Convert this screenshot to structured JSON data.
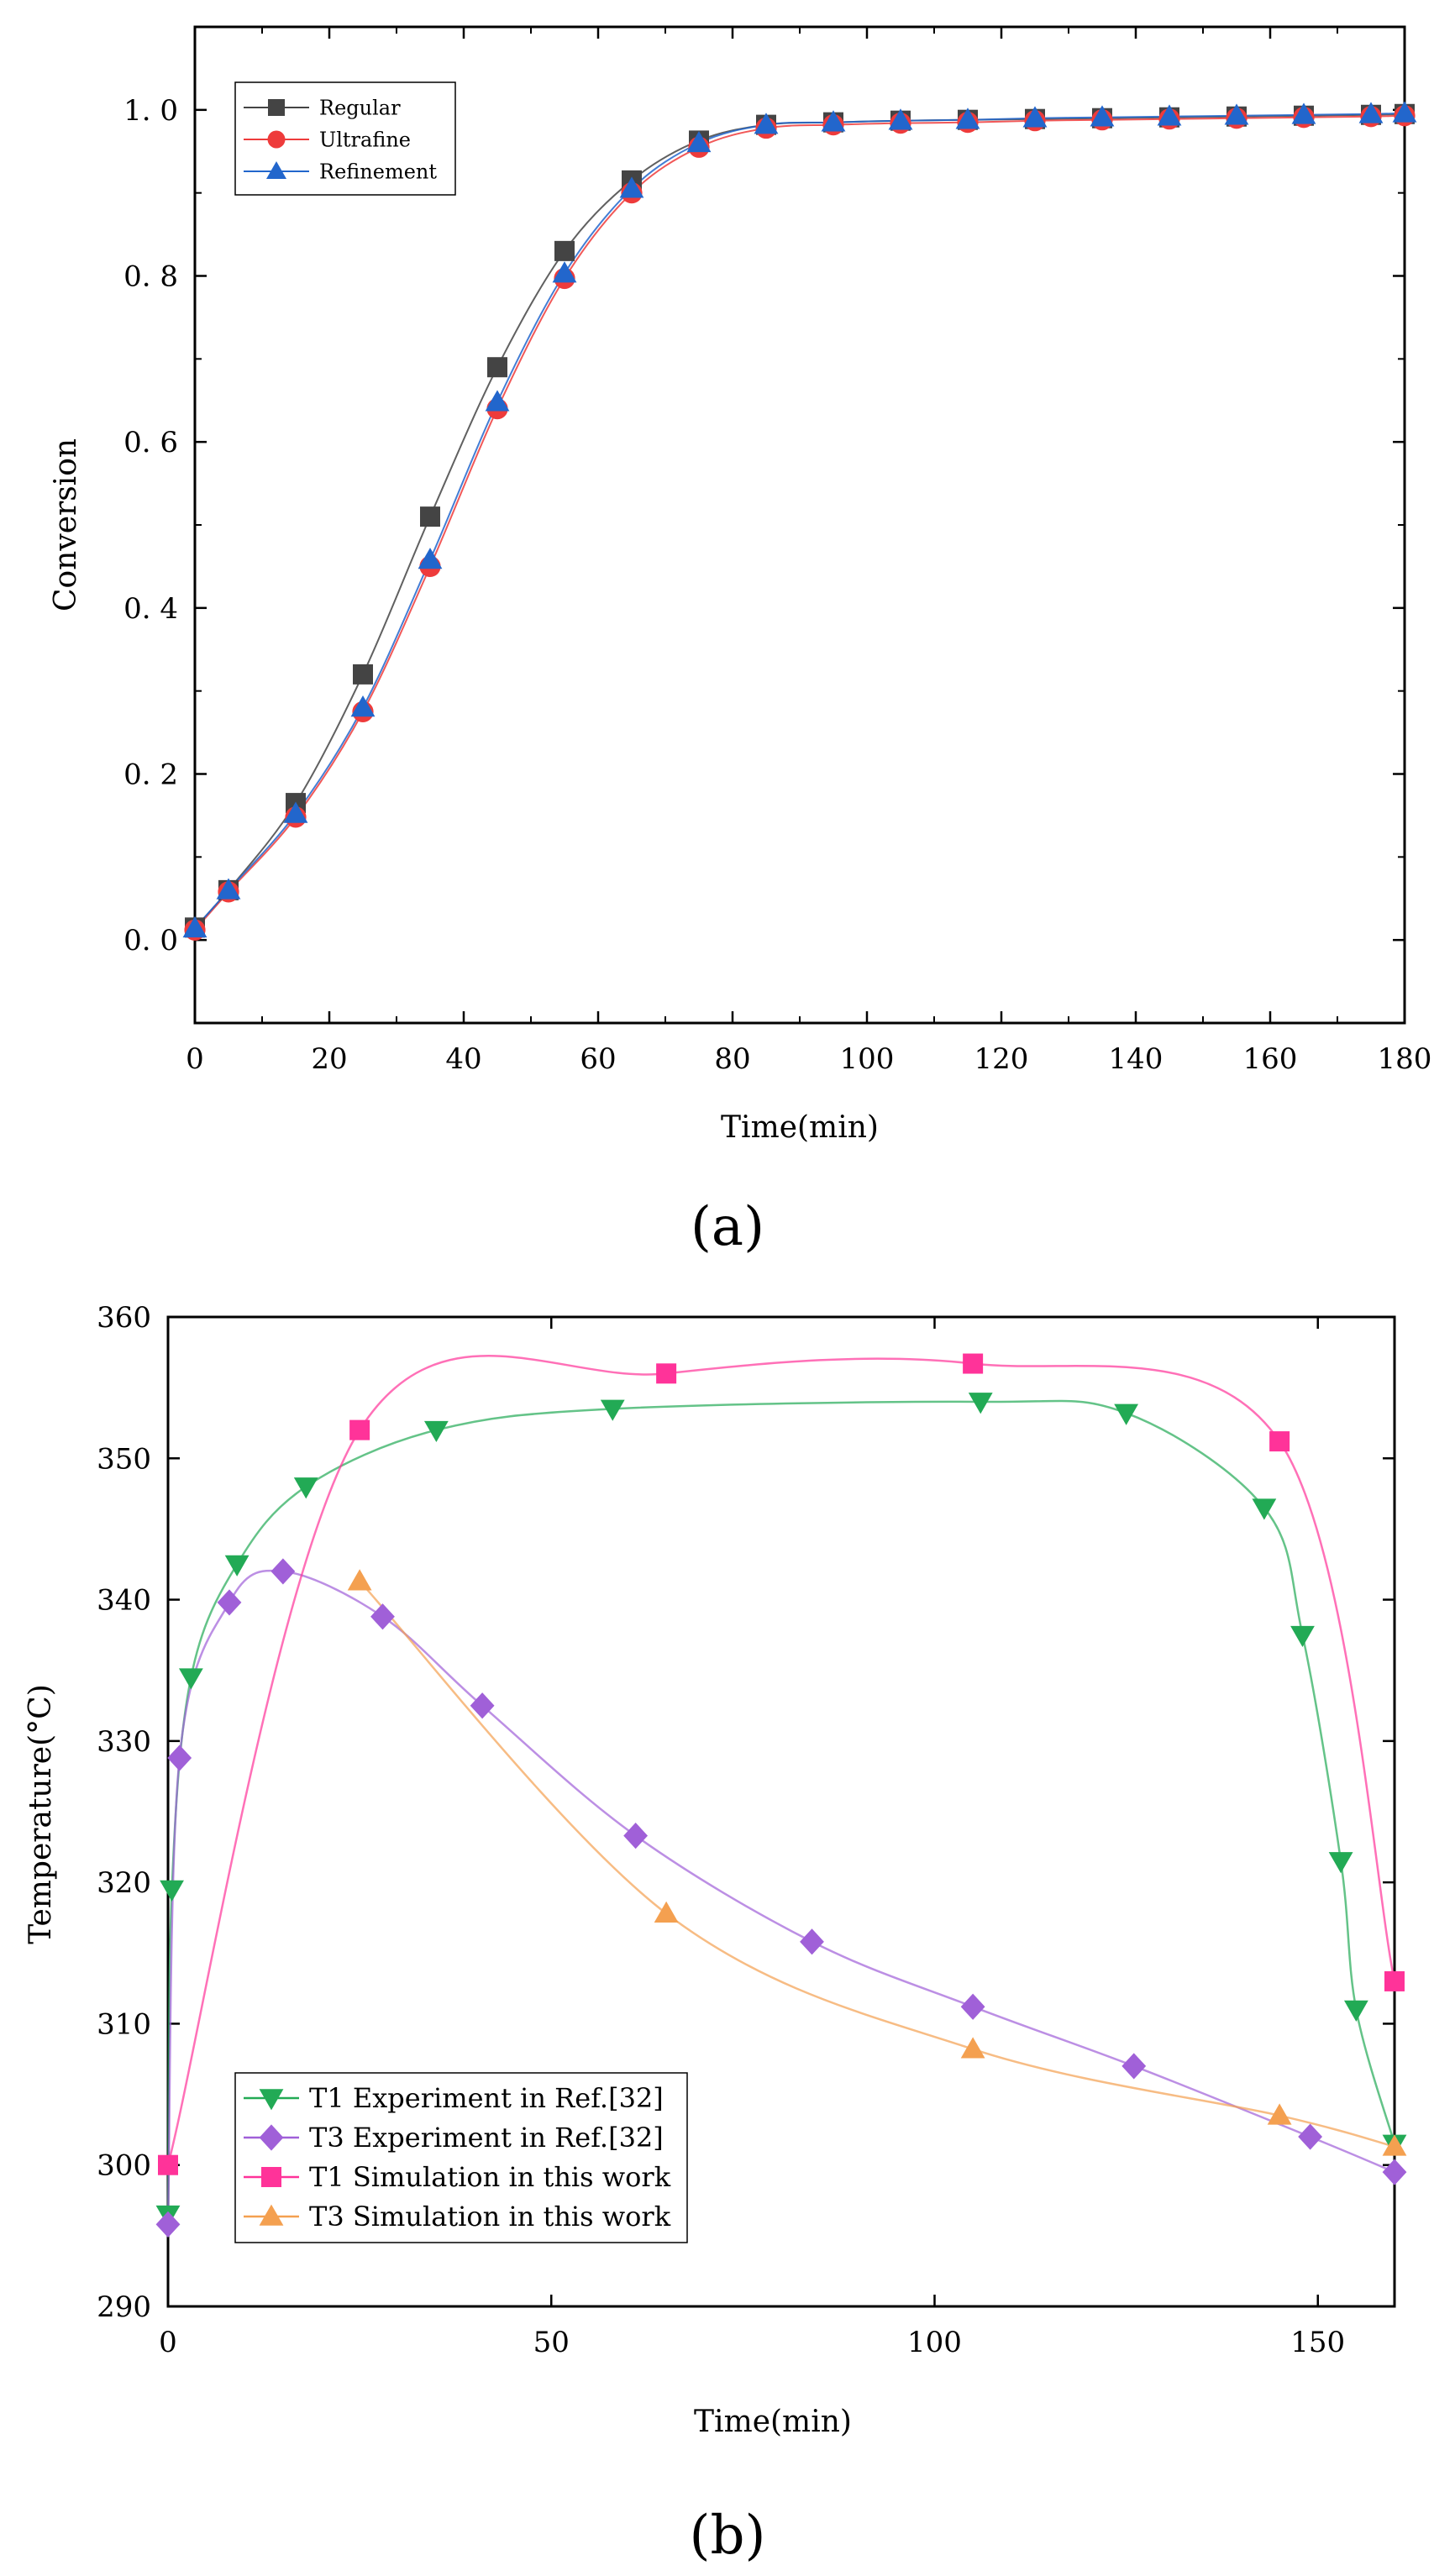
{
  "chart_data": [
    {
      "type": "line",
      "panel": "(a)",
      "xlabel": "Time(min)",
      "ylabel": "Conversion",
      "xlim": [
        0,
        180
      ],
      "ylim": [
        -0.1,
        1.1
      ],
      "xticks": [
        0,
        20,
        40,
        60,
        80,
        100,
        120,
        140,
        160,
        180
      ],
      "yticks": [
        0.0,
        0.2,
        0.4,
        0.6,
        0.8,
        1.0
      ],
      "ytick_labels": [
        "0. 0",
        "0. 2",
        "0. 4",
        "0. 6",
        "0. 8",
        "1. 0"
      ],
      "legend_position": "top-left",
      "series": [
        {
          "name": "Regular",
          "color": "#444444",
          "marker": "square",
          "x": [
            0,
            5,
            15,
            25,
            35,
            45,
            55,
            65,
            75,
            85,
            95,
            105,
            115,
            125,
            135,
            145,
            155,
            165,
            175,
            180
          ],
          "y": [
            0.015,
            0.06,
            0.165,
            0.32,
            0.51,
            0.69,
            0.83,
            0.915,
            0.963,
            0.982,
            0.985,
            0.987,
            0.988,
            0.989,
            0.99,
            0.991,
            0.992,
            0.993,
            0.994,
            0.995
          ]
        },
        {
          "name": "Ultrafine",
          "color": "#ee3b3b",
          "marker": "circle",
          "x": [
            0,
            5,
            15,
            25,
            35,
            45,
            55,
            65,
            75,
            85,
            95,
            105,
            115,
            125,
            135,
            145,
            155,
            165,
            175,
            180
          ],
          "y": [
            0.012,
            0.058,
            0.148,
            0.275,
            0.45,
            0.64,
            0.797,
            0.9,
            0.955,
            0.978,
            0.982,
            0.984,
            0.985,
            0.987,
            0.988,
            0.989,
            0.99,
            0.991,
            0.992,
            0.993
          ]
        },
        {
          "name": "Refinement",
          "color": "#2266cc",
          "marker": "triangle",
          "x": [
            0,
            5,
            15,
            25,
            35,
            45,
            55,
            65,
            75,
            85,
            95,
            105,
            115,
            125,
            135,
            145,
            155,
            165,
            175,
            180
          ],
          "y": [
            0.014,
            0.06,
            0.152,
            0.28,
            0.458,
            0.648,
            0.803,
            0.905,
            0.96,
            0.982,
            0.985,
            0.987,
            0.988,
            0.99,
            0.991,
            0.992,
            0.993,
            0.994,
            0.995,
            0.996
          ]
        }
      ]
    },
    {
      "type": "line",
      "panel": "(b)",
      "xlabel": "Time(min)",
      "ylabel": "Temperature(°C)",
      "xlim": [
        0,
        160
      ],
      "ylim": [
        290,
        360
      ],
      "xticks": [
        0,
        50,
        100,
        150
      ],
      "yticks": [
        290,
        300,
        310,
        320,
        330,
        340,
        350,
        360
      ],
      "legend_position": "bottom-left",
      "series": [
        {
          "name": "T1 Experiment in Ref.[32]",
          "color": "#22aa55",
          "marker": "triangle-down",
          "x": [
            0,
            0.5,
            3,
            9,
            18,
            35,
            58,
            106,
            125,
            143,
            148,
            153,
            155,
            160
          ],
          "y": [
            296.5,
            319.5,
            334.5,
            342.5,
            348,
            352,
            353.5,
            354,
            353.2,
            346.5,
            337.5,
            321.5,
            311,
            301.5
          ]
        },
        {
          "name": "T3 Experiment in Ref.[32]",
          "color": "#a060d8",
          "marker": "diamond",
          "x": [
            0,
            1.5,
            8,
            15,
            28,
            41,
            61,
            84,
            105,
            126,
            149,
            160
          ],
          "y": [
            295.8,
            328.8,
            339.8,
            342,
            338.8,
            332.5,
            323.3,
            315.8,
            311.2,
            307,
            302,
            299.5
          ]
        },
        {
          "name": "T1 Simulation in this work",
          "color": "#ff3399",
          "marker": "square",
          "x": [
            0,
            25,
            65,
            105,
            145,
            160
          ],
          "y": [
            300,
            352,
            356,
            356.7,
            351.2,
            313
          ]
        },
        {
          "name": "T3 Simulation in this work",
          "color": "#f4a050",
          "marker": "triangle",
          "x": [
            25,
            65,
            105,
            145,
            160
          ],
          "y": [
            341.3,
            317.8,
            308.2,
            303.5,
            301.3
          ]
        }
      ]
    }
  ]
}
